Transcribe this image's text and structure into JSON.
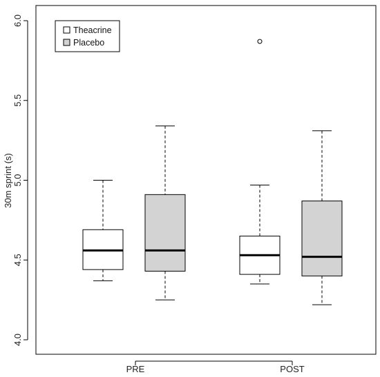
{
  "chart_data": {
    "type": "boxplot",
    "title": "",
    "xlabel": "",
    "ylabel": "30m sprint (s)",
    "ylim": [
      4.0,
      6.0
    ],
    "y_ticks": [
      "4.0",
      "4.5",
      "5.0",
      "5.5",
      "6.0"
    ],
    "categories": [
      "PRE",
      "POST"
    ],
    "legend_position": "top-left",
    "grid": false,
    "series": [
      {
        "name": "Theacrine",
        "color": "#ffffff",
        "boxes": [
          {
            "category": "PRE",
            "min": 4.37,
            "q1": 4.44,
            "median": 4.56,
            "q3": 4.69,
            "max": 5.0,
            "outliers": []
          },
          {
            "category": "POST",
            "min": 4.35,
            "q1": 4.41,
            "median": 4.53,
            "q3": 4.65,
            "max": 4.97,
            "outliers": [
              5.87
            ]
          }
        ]
      },
      {
        "name": "Placebo",
        "color": "#d3d3d3",
        "boxes": [
          {
            "category": "PRE",
            "min": 4.25,
            "q1": 4.43,
            "median": 4.56,
            "q3": 4.91,
            "max": 5.34,
            "outliers": []
          },
          {
            "category": "POST",
            "min": 4.22,
            "q1": 4.4,
            "median": 4.52,
            "q3": 4.87,
            "max": 5.31,
            "outliers": []
          }
        ]
      }
    ]
  }
}
